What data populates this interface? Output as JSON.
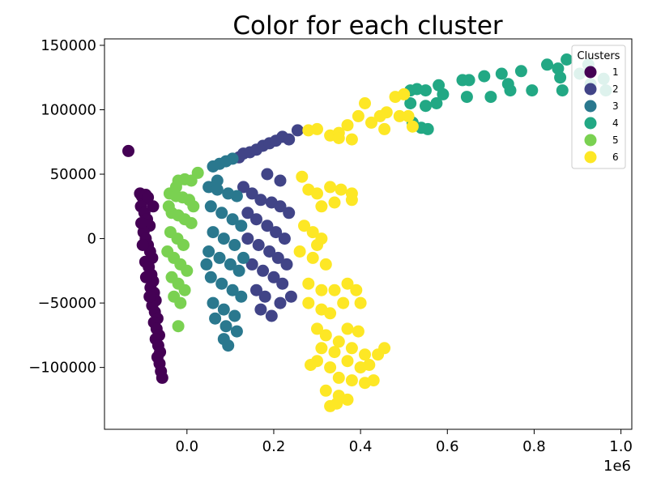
{
  "chart_data": {
    "type": "scatter",
    "title": "Color for each cluster",
    "xlabel": "",
    "ylabel": "",
    "x_offset_label": "1e6",
    "xlim": [
      -190000,
      1025000
    ],
    "ylim": [
      -148000,
      155000
    ],
    "x_ticks": [
      0,
      200000,
      400000,
      600000,
      800000,
      1000000
    ],
    "x_tick_labels": [
      "0.0",
      "0.2",
      "0.4",
      "0.6",
      "0.8",
      "1.0"
    ],
    "y_ticks": [
      -100000,
      -50000,
      0,
      50000,
      100000,
      150000
    ],
    "y_tick_labels": [
      "−100000",
      "−50000",
      "0",
      "50000",
      "100000",
      "150000"
    ],
    "grid": false,
    "legend": {
      "title": "Clusters",
      "position": "top-right"
    },
    "series": [
      {
        "name": "1",
        "color": "#440154",
        "points": [
          [
            -135000,
            68000
          ],
          [
            -108000,
            35000
          ],
          [
            -104000,
            33000
          ],
          [
            -100000,
            30000
          ],
          [
            -95000,
            34000
          ],
          [
            -90000,
            32000
          ],
          [
            -106000,
            25000
          ],
          [
            -98000,
            20000
          ],
          [
            -92000,
            15000
          ],
          [
            -86000,
            10000
          ],
          [
            -100000,
            5000
          ],
          [
            -95000,
            0
          ],
          [
            -90000,
            -5000
          ],
          [
            -85000,
            -10000
          ],
          [
            -80000,
            -15000
          ],
          [
            -96000,
            -18000
          ],
          [
            -88000,
            -22000
          ],
          [
            -82000,
            -28000
          ],
          [
            -78000,
            -33000
          ],
          [
            -84000,
            -38000
          ],
          [
            -76000,
            -42000
          ],
          [
            -72000,
            -48000
          ],
          [
            -80000,
            -52000
          ],
          [
            -74000,
            -57000
          ],
          [
            -68000,
            -62000
          ],
          [
            -76000,
            -65000
          ],
          [
            -70000,
            -70000
          ],
          [
            -64000,
            -75000
          ],
          [
            -72000,
            -78000
          ],
          [
            -66000,
            -83000
          ],
          [
            -62000,
            -88000
          ],
          [
            -68000,
            -92000
          ],
          [
            -63000,
            -97000
          ],
          [
            -60000,
            -103000
          ],
          [
            -57000,
            -108000
          ],
          [
            -105000,
            12000
          ],
          [
            -102000,
            -5000
          ],
          [
            -94000,
            -30000
          ],
          [
            -86000,
            -45000
          ],
          [
            -78000,
            25000
          ]
        ]
      },
      {
        "name": "2",
        "color": "#414487",
        "points": [
          [
            120000,
            63000
          ],
          [
            130000,
            66000
          ],
          [
            145000,
            67000
          ],
          [
            160000,
            69000
          ],
          [
            175000,
            72000
          ],
          [
            190000,
            74000
          ],
          [
            205000,
            76000
          ],
          [
            220000,
            79000
          ],
          [
            235000,
            77000
          ],
          [
            255000,
            84000
          ],
          [
            130000,
            40000
          ],
          [
            150000,
            35000
          ],
          [
            170000,
            30000
          ],
          [
            195000,
            28000
          ],
          [
            215000,
            25000
          ],
          [
            140000,
            20000
          ],
          [
            160000,
            15000
          ],
          [
            185000,
            10000
          ],
          [
            205000,
            5000
          ],
          [
            225000,
            0
          ],
          [
            140000,
            0
          ],
          [
            165000,
            -5000
          ],
          [
            190000,
            -10000
          ],
          [
            210000,
            -15000
          ],
          [
            150000,
            -20000
          ],
          [
            175000,
            -25000
          ],
          [
            200000,
            -30000
          ],
          [
            220000,
            -35000
          ],
          [
            160000,
            -40000
          ],
          [
            180000,
            -45000
          ],
          [
            215000,
            -50000
          ],
          [
            170000,
            -55000
          ],
          [
            195000,
            -60000
          ],
          [
            215000,
            45000
          ],
          [
            185000,
            50000
          ],
          [
            235000,
            20000
          ],
          [
            230000,
            -20000
          ],
          [
            240000,
            -45000
          ]
        ]
      },
      {
        "name": "3",
        "color": "#2a788e",
        "points": [
          [
            60000,
            56000
          ],
          [
            75000,
            58000
          ],
          [
            90000,
            60000
          ],
          [
            105000,
            62000
          ],
          [
            50000,
            40000
          ],
          [
            70000,
            38000
          ],
          [
            95000,
            35000
          ],
          [
            115000,
            33000
          ],
          [
            55000,
            25000
          ],
          [
            80000,
            20000
          ],
          [
            105000,
            15000
          ],
          [
            60000,
            5000
          ],
          [
            85000,
            0
          ],
          [
            110000,
            -5000
          ],
          [
            50000,
            -10000
          ],
          [
            75000,
            -15000
          ],
          [
            100000,
            -20000
          ],
          [
            120000,
            -25000
          ],
          [
            55000,
            -30000
          ],
          [
            80000,
            -35000
          ],
          [
            105000,
            -40000
          ],
          [
            125000,
            -45000
          ],
          [
            60000,
            -50000
          ],
          [
            85000,
            -55000
          ],
          [
            110000,
            -60000
          ],
          [
            65000,
            -62000
          ],
          [
            90000,
            -68000
          ],
          [
            115000,
            -72000
          ],
          [
            85000,
            -78000
          ],
          [
            95000,
            -83000
          ],
          [
            70000,
            45000
          ],
          [
            125000,
            10000
          ],
          [
            45000,
            -20000
          ],
          [
            130000,
            -15000
          ]
        ]
      },
      {
        "name": "4",
        "color": "#22a884",
        "points": [
          [
            515000,
            115000
          ],
          [
            530000,
            116000
          ],
          [
            550000,
            115000
          ],
          [
            580000,
            119000
          ],
          [
            515000,
            105000
          ],
          [
            550000,
            103000
          ],
          [
            575000,
            105000
          ],
          [
            520000,
            90000
          ],
          [
            540000,
            86000
          ],
          [
            555000,
            85000
          ],
          [
            590000,
            112000
          ],
          [
            635000,
            123000
          ],
          [
            650000,
            123000
          ],
          [
            645000,
            110000
          ],
          [
            685000,
            126000
          ],
          [
            700000,
            110000
          ],
          [
            725000,
            128000
          ],
          [
            740000,
            120000
          ],
          [
            745000,
            115000
          ],
          [
            770000,
            130000
          ],
          [
            795000,
            115000
          ],
          [
            830000,
            135000
          ],
          [
            855000,
            132000
          ],
          [
            860000,
            125000
          ],
          [
            865000,
            115000
          ],
          [
            875000,
            139000
          ],
          [
            905000,
            128000
          ],
          [
            925000,
            135000
          ],
          [
            960000,
            124000
          ],
          [
            965000,
            115000
          ],
          [
            930000,
            120000
          ]
        ]
      },
      {
        "name": "5",
        "color": "#7ad151",
        "points": [
          [
            -20000,
            45000
          ],
          [
            -5000,
            46000
          ],
          [
            10000,
            45000
          ],
          [
            25000,
            51000
          ],
          [
            -40000,
            35000
          ],
          [
            -25000,
            33000
          ],
          [
            -10000,
            32000
          ],
          [
            5000,
            30000
          ],
          [
            -35000,
            20000
          ],
          [
            -20000,
            18000
          ],
          [
            -5000,
            15000
          ],
          [
            10000,
            12000
          ],
          [
            -38000,
            5000
          ],
          [
            -22000,
            0
          ],
          [
            -8000,
            -5000
          ],
          [
            -30000,
            -15000
          ],
          [
            -15000,
            -20000
          ],
          [
            0,
            -25000
          ],
          [
            -35000,
            -30000
          ],
          [
            -20000,
            -35000
          ],
          [
            -5000,
            -40000
          ],
          [
            -30000,
            -45000
          ],
          [
            -15000,
            -50000
          ],
          [
            -20000,
            -68000
          ],
          [
            -42000,
            25000
          ],
          [
            -45000,
            -10000
          ],
          [
            15000,
            25000
          ],
          [
            -25000,
            40000
          ]
        ]
      },
      {
        "name": "6",
        "color": "#fde725",
        "points": [
          [
            280000,
            84000
          ],
          [
            300000,
            85000
          ],
          [
            330000,
            80000
          ],
          [
            350000,
            82000
          ],
          [
            370000,
            88000
          ],
          [
            395000,
            95000
          ],
          [
            410000,
            105000
          ],
          [
            425000,
            90000
          ],
          [
            445000,
            95000
          ],
          [
            460000,
            98000
          ],
          [
            480000,
            110000
          ],
          [
            500000,
            112000
          ],
          [
            490000,
            95000
          ],
          [
            510000,
            95000
          ],
          [
            520000,
            87000
          ],
          [
            455000,
            85000
          ],
          [
            350000,
            78000
          ],
          [
            380000,
            77000
          ],
          [
            265000,
            48000
          ],
          [
            280000,
            38000
          ],
          [
            300000,
            35000
          ],
          [
            330000,
            40000
          ],
          [
            355000,
            38000
          ],
          [
            310000,
            25000
          ],
          [
            340000,
            28000
          ],
          [
            380000,
            35000
          ],
          [
            380000,
            30000
          ],
          [
            270000,
            10000
          ],
          [
            290000,
            5000
          ],
          [
            310000,
            0
          ],
          [
            260000,
            -10000
          ],
          [
            290000,
            -15000
          ],
          [
            300000,
            -5000
          ],
          [
            320000,
            -20000
          ],
          [
            280000,
            -35000
          ],
          [
            310000,
            -40000
          ],
          [
            340000,
            -40000
          ],
          [
            370000,
            -35000
          ],
          [
            390000,
            -40000
          ],
          [
            280000,
            -50000
          ],
          [
            310000,
            -55000
          ],
          [
            330000,
            -58000
          ],
          [
            360000,
            -50000
          ],
          [
            400000,
            -50000
          ],
          [
            300000,
            -70000
          ],
          [
            320000,
            -75000
          ],
          [
            350000,
            -80000
          ],
          [
            370000,
            -70000
          ],
          [
            395000,
            -72000
          ],
          [
            310000,
            -85000
          ],
          [
            340000,
            -88000
          ],
          [
            380000,
            -85000
          ],
          [
            410000,
            -90000
          ],
          [
            300000,
            -95000
          ],
          [
            330000,
            -100000
          ],
          [
            370000,
            -95000
          ],
          [
            400000,
            -100000
          ],
          [
            420000,
            -98000
          ],
          [
            440000,
            -90000
          ],
          [
            455000,
            -85000
          ],
          [
            350000,
            -108000
          ],
          [
            380000,
            -110000
          ],
          [
            410000,
            -112000
          ],
          [
            430000,
            -110000
          ],
          [
            320000,
            -118000
          ],
          [
            350000,
            -122000
          ],
          [
            370000,
            -125000
          ],
          [
            330000,
            -130000
          ],
          [
            345000,
            -128000
          ],
          [
            285000,
            -98000
          ]
        ]
      }
    ]
  }
}
